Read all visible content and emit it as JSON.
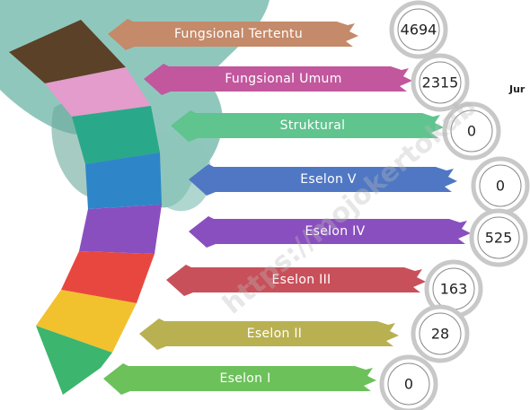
{
  "items": [
    {
      "label": "Fungsional Tertentu",
      "value": "4694"
    },
    {
      "label": "Fungsional Umum",
      "value": "2315"
    },
    {
      "label": "Struktural",
      "value": "0"
    },
    {
      "label": "Eselon V",
      "value": "0"
    },
    {
      "label": "Eselon IV",
      "value": "525"
    },
    {
      "label": "Eselon III",
      "value": "163"
    },
    {
      "label": "Eselon II",
      "value": "28"
    },
    {
      "label": "Eselon I",
      "value": "0"
    }
  ],
  "side_text": "Jur",
  "watermark": "https://mojokertokab"
}
